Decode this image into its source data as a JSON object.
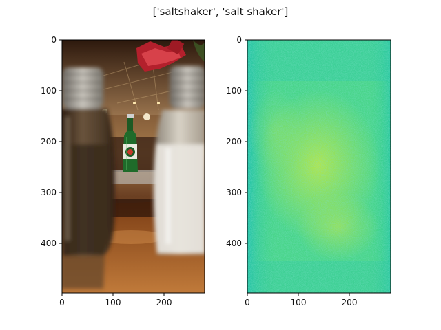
{
  "figure": {
    "title": "['saltshaker', 'salt shaker']"
  },
  "panels": [
    {
      "image": "photo-salt-and-pepper-shakers-with-beer-bottle",
      "x_ticks": [
        "0",
        "100",
        "200"
      ],
      "y_ticks": [
        "0",
        "100",
        "200",
        "300",
        "400"
      ]
    },
    {
      "image": "noise-heatmap",
      "x_ticks": [
        "0",
        "100",
        "200"
      ],
      "y_ticks": [
        "0",
        "100",
        "200",
        "300",
        "400"
      ]
    }
  ]
}
